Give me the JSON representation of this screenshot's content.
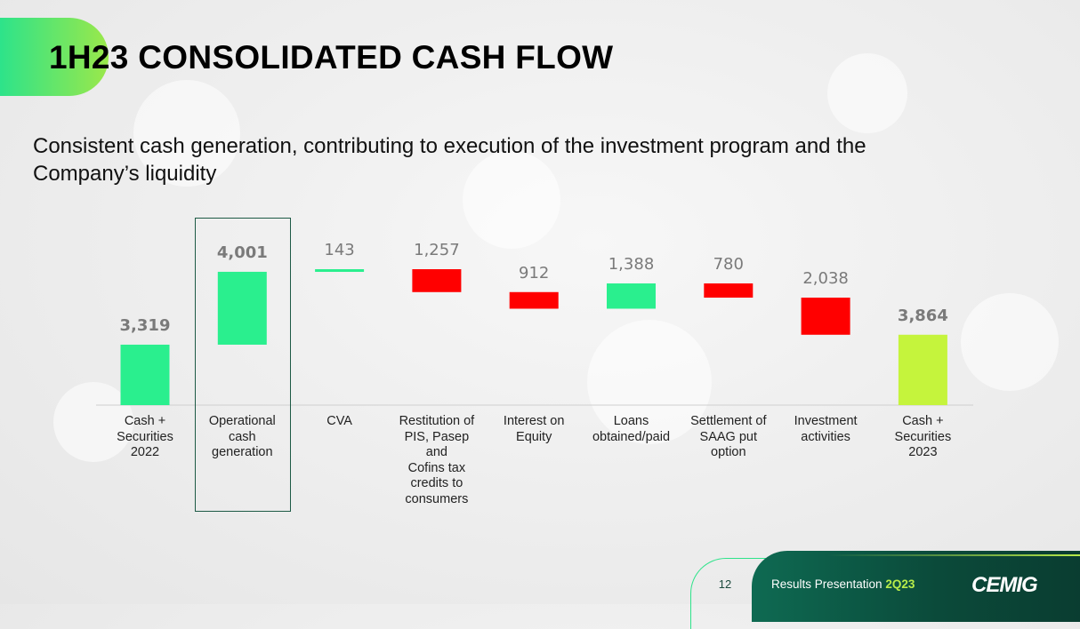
{
  "title": "1H23 CONSOLIDATED CASH FLOW",
  "subtitle": "Consistent cash generation, contributing to execution of the investment program and the Company’s liquidity",
  "colors": {
    "increase": "#2aef8e",
    "decrease": "#ff0000",
    "total_end": "#c5f43c",
    "value_label": "#7a7a7a",
    "highlight_border": "#1d5a45"
  },
  "chart_data": {
    "type": "bar",
    "subtype": "waterfall",
    "categories": [
      "Cash + Securities 2022",
      "Operational cash generation",
      "CVA",
      "Restitution of PIS, Pasep and Cofins tax credits to consumers",
      "Interest on Equity",
      "Loans obtained/paid",
      "Settlement of SAAG put option",
      "Investment activities",
      "Cash + Securities 2023"
    ],
    "values": [
      3319,
      4001,
      143,
      -1257,
      -912,
      1388,
      -780,
      -2038,
      3864
    ],
    "value_labels": [
      "3,319",
      "4,001",
      "143",
      "1,257",
      "912",
      "1,388",
      "780",
      "2,038",
      "3,864"
    ],
    "kinds": [
      "total",
      "increase",
      "increase",
      "decrease",
      "decrease",
      "increase",
      "decrease",
      "decrease",
      "total"
    ],
    "bold_labels": [
      true,
      true,
      false,
      false,
      false,
      false,
      false,
      false,
      true
    ],
    "highlighted_category": "Operational cash generation",
    "ylim": [
      0,
      10000
    ]
  },
  "category_label_lines": [
    [
      "Cash +",
      "Securities",
      "2022"
    ],
    [
      "Operational",
      "cash",
      "generation"
    ],
    [
      "CVA"
    ],
    [
      "Restitution of",
      "PIS, Pasep and",
      "Cofins tax",
      "credits to",
      "consumers"
    ],
    [
      "Interest on",
      "Equity"
    ],
    [
      "Loans",
      "obtained/paid"
    ],
    [
      "Settlement of",
      "SAAG put",
      "option"
    ],
    [
      "Investment",
      "activities"
    ],
    [
      "Cash +",
      "Securities",
      "2023"
    ]
  ],
  "footer": {
    "page_number": "12",
    "text": "Results Presentation ",
    "accent_text": "2Q23",
    "logo": "CEMIG"
  }
}
